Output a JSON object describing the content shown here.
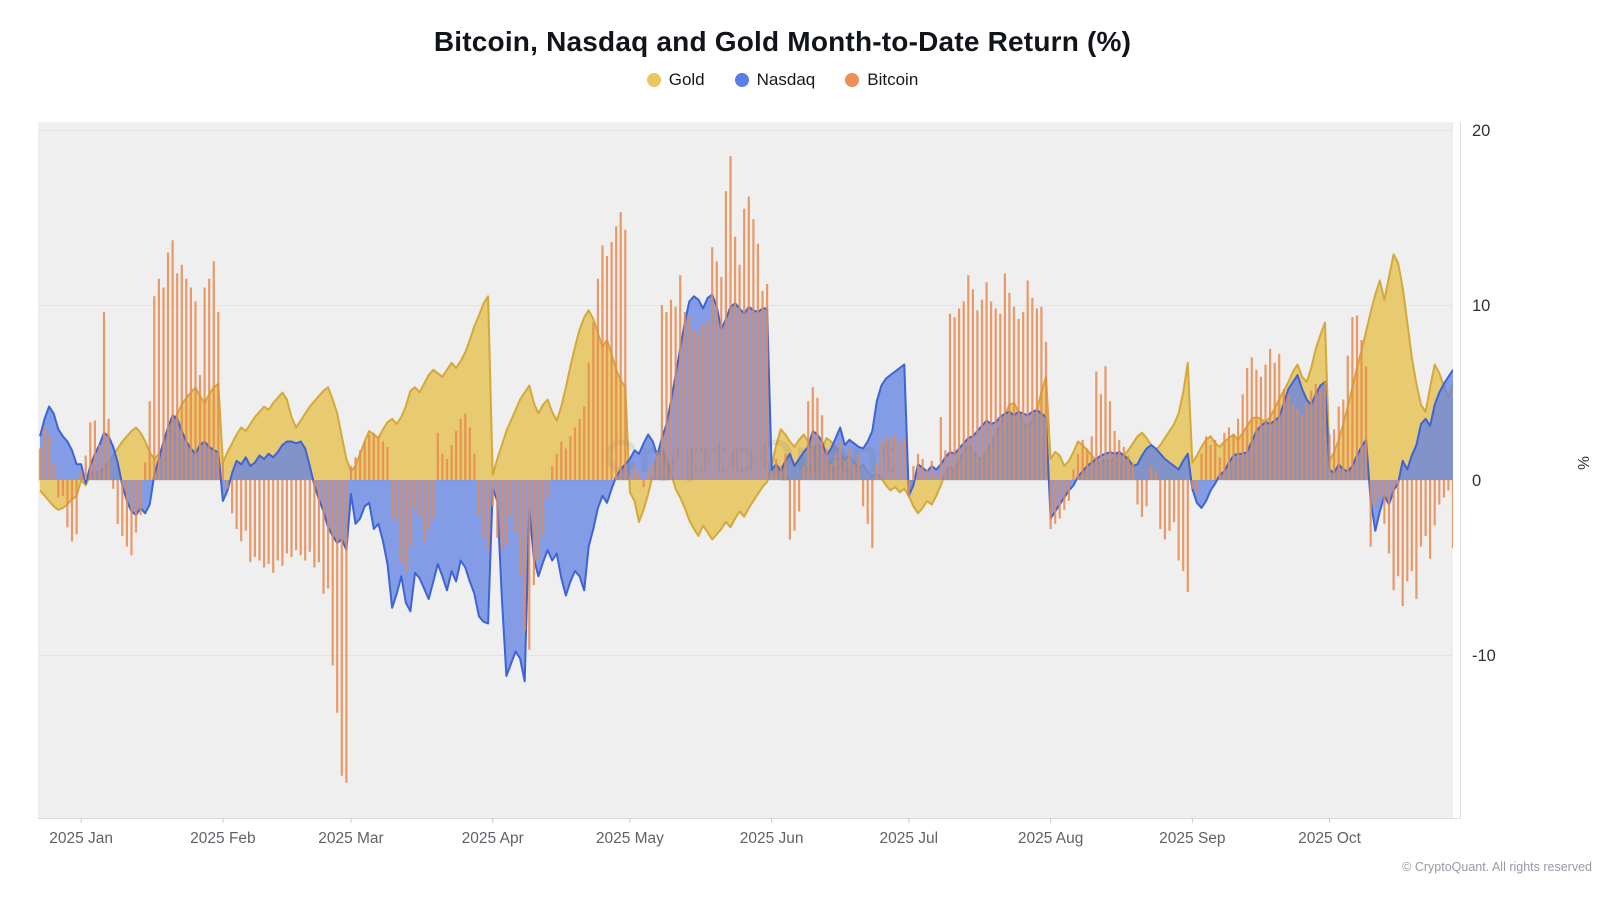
{
  "title": "Bitcoin, Nasdaq and Gold Month-to-Date Return (%)",
  "legend": [
    {
      "label": "Gold",
      "color": "#e7c95f"
    },
    {
      "label": "Nasdaq",
      "color": "#5a7de6"
    },
    {
      "label": "Bitcoin",
      "color": "#ed8e55"
    }
  ],
  "watermark": "CryptoQuant",
  "footer": "© CryptoQuant. All rights reserved",
  "chart_data": {
    "type": "mixed",
    "title": "Bitcoin, Nasdaq and Gold Month-to-Date Return (%)",
    "ylabel": "%",
    "grid": true,
    "legend_position": "top-center",
    "start_date": "2024-12-23",
    "frequency": "daily",
    "note": "Month-to-date return in percent; values reset to ~0 at the start of each month.",
    "y_axis": {
      "ticks": [
        20,
        10,
        0,
        -10
      ],
      "unit": "%",
      "range": [
        -19.3,
        20.5
      ]
    },
    "x_axis": {
      "month_labels": [
        {
          "label": "2025 Jan",
          "day_index": 9
        },
        {
          "label": "2025 Feb",
          "day_index": 40
        },
        {
          "label": "2025 Mar",
          "day_index": 68
        },
        {
          "label": "2025 Apr",
          "day_index": 99
        },
        {
          "label": "2025 May",
          "day_index": 129
        },
        {
          "label": "2025 Jun",
          "day_index": 160
        },
        {
          "label": "2025 Jul",
          "day_index": 190
        },
        {
          "label": "2025 Aug",
          "day_index": 221
        },
        {
          "label": "2025 Sep",
          "day_index": 252
        },
        {
          "label": "2025 Oct",
          "day_index": 282
        }
      ]
    },
    "series": [
      {
        "name": "Gold",
        "type": "area",
        "fill": "#e7c55f",
        "fill_opacity": 0.88,
        "stroke": "#d3a93a",
        "values": [
          -0.6,
          -0.9,
          -1.2,
          -1.5,
          -1.7,
          -1.6,
          -1.4,
          -1.1,
          -0.9,
          0.0,
          -0.3,
          0.3,
          0.5,
          0.4,
          0.7,
          1.0,
          1.4,
          1.8,
          2.2,
          2.5,
          2.8,
          3.0,
          2.7,
          2.2,
          1.6,
          1.2,
          1.5,
          2.0,
          2.6,
          3.2,
          3.8,
          4.3,
          4.7,
          5.0,
          5.3,
          4.8,
          4.4,
          4.9,
          5.3,
          5.5,
          1.0,
          1.6,
          2.1,
          2.6,
          3.0,
          2.8,
          3.2,
          3.6,
          3.9,
          4.2,
          4.0,
          4.4,
          4.7,
          5.0,
          4.6,
          3.6,
          3.0,
          3.4,
          3.8,
          4.2,
          4.5,
          4.8,
          5.1,
          5.3,
          4.6,
          3.8,
          2.5,
          1.2,
          0.5,
          0.8,
          1.5,
          2.2,
          2.8,
          2.6,
          2.4,
          2.9,
          3.3,
          3.5,
          3.2,
          3.6,
          4.2,
          5.1,
          5.3,
          5.0,
          5.5,
          6.0,
          6.3,
          6.1,
          5.9,
          6.3,
          6.7,
          6.4,
          6.8,
          7.3,
          8.0,
          8.8,
          9.4,
          10.1,
          10.5,
          0.3,
          1.2,
          2.0,
          2.8,
          3.4,
          4.0,
          4.6,
          5.0,
          5.4,
          4.4,
          3.8,
          4.3,
          4.6,
          3.9,
          3.4,
          4.2,
          5.3,
          6.5,
          7.6,
          8.6,
          9.3,
          9.7,
          9.2,
          8.4,
          7.6,
          8.0,
          7.2,
          6.3,
          5.7,
          5.3,
          -0.7,
          -1.2,
          -2.4,
          -1.7,
          -0.8,
          0.3,
          1.5,
          1.7,
          1.2,
          0.4,
          -0.5,
          -1.0,
          -1.6,
          -2.3,
          -2.8,
          -3.2,
          -2.6,
          -3.0,
          -3.4,
          -3.1,
          -2.8,
          -2.4,
          -2.7,
          -2.2,
          -1.8,
          -2.1,
          -1.6,
          -1.2,
          -0.8,
          -0.4,
          -0.1,
          0.8,
          2.0,
          2.9,
          2.6,
          2.2,
          1.9,
          2.3,
          2.6,
          2.2,
          1.7,
          2.1,
          1.8,
          2.4,
          2.2,
          1.9,
          1.5,
          1.2,
          1.4,
          1.0,
          0.7,
          0.9,
          0.5,
          0.2,
          0.4,
          0.1,
          -0.3,
          -0.6,
          -0.4,
          -0.7,
          -0.5,
          -0.9,
          -1.5,
          -1.9,
          -1.6,
          -1.2,
          -1.4,
          -0.9,
          -0.3,
          0.4,
          0.8,
          0.5,
          1.1,
          1.6,
          2.0,
          1.7,
          1.3,
          1.2,
          1.6,
          2.1,
          2.6,
          3.1,
          3.7,
          4.3,
          4.4,
          3.9,
          3.3,
          2.9,
          3.4,
          4.0,
          5.0,
          5.9,
          1.2,
          1.6,
          1.4,
          0.8,
          1.1,
          1.6,
          2.2,
          2.0,
          1.7,
          1.4,
          1.1,
          0.9,
          1.2,
          1.0,
          1.3,
          1.6,
          1.4,
          1.7,
          2.1,
          2.5,
          2.7,
          2.4,
          2.0,
          1.7,
          2.0,
          2.4,
          2.8,
          3.2,
          3.8,
          5.0,
          6.7,
          1.0,
          1.4,
          1.9,
          2.3,
          2.5,
          2.1,
          1.9,
          2.2,
          2.4,
          2.6,
          2.3,
          2.7,
          3.1,
          3.5,
          3.6,
          3.5,
          3.3,
          3.6,
          4.1,
          4.6,
          5.1,
          5.6,
          6.2,
          6.6,
          5.9,
          5.6,
          6.4,
          7.5,
          8.3,
          9.0,
          1.1,
          1.6,
          2.3,
          3.2,
          4.2,
          5.3,
          6.4,
          7.4,
          8.5,
          9.6,
          10.6,
          11.4,
          10.3,
          11.6,
          12.9,
          12.4,
          11.0,
          9.0,
          7.0,
          5.5,
          4.3,
          3.9,
          5.3,
          6.6,
          6.1,
          5.4,
          4.7,
          5.5
        ]
      },
      {
        "name": "Nasdaq",
        "type": "area",
        "fill": "#6484e2",
        "fill_opacity": 0.78,
        "stroke": "#3e63d5",
        "values": [
          2.5,
          3.5,
          4.2,
          3.8,
          2.9,
          2.5,
          2.2,
          1.7,
          0.9,
          0.9,
          -0.2,
          0.8,
          1.5,
          2.0,
          2.7,
          2.5,
          1.9,
          1.0,
          -0.3,
          -1.2,
          -1.8,
          -2.0,
          -1.6,
          -1.9,
          -1.4,
          0.3,
          1.2,
          2.2,
          3.0,
          3.7,
          3.5,
          2.8,
          2.2,
          1.8,
          1.5,
          2.0,
          2.2,
          1.9,
          1.7,
          1.6,
          -1.2,
          -0.6,
          0.4,
          1.1,
          0.9,
          1.3,
          0.8,
          1.0,
          1.4,
          1.2,
          1.5,
          1.3,
          1.6,
          2.0,
          2.2,
          2.2,
          2.1,
          2.2,
          1.8,
          0.8,
          -0.3,
          -1.1,
          -1.8,
          -2.7,
          -3.2,
          -3.6,
          -3.4,
          -4.0,
          -0.8,
          -2.5,
          -2.2,
          -1.5,
          -1.3,
          -2.8,
          -2.5,
          -3.5,
          -4.8,
          -7.3,
          -6.5,
          -5.5,
          -7.0,
          -7.5,
          -5.3,
          -5.6,
          -6.2,
          -6.8,
          -5.8,
          -4.8,
          -5.5,
          -6.3,
          -5.2,
          -5.8,
          -4.6,
          -5.0,
          -5.8,
          -6.5,
          -7.8,
          -8.1,
          -8.2,
          -0.5,
          -1.2,
          -6.8,
          -11.2,
          -10.5,
          -9.8,
          -10.2,
          -11.5,
          -1.7,
          -4.5,
          -5.5,
          -4.7,
          -4.0,
          -4.6,
          -4.2,
          -5.6,
          -6.6,
          -5.8,
          -5.2,
          -5.5,
          -6.3,
          -3.8,
          -2.8,
          -1.6,
          -0.9,
          -1.3,
          -0.5,
          0.2,
          0.6,
          0.9,
          1.2,
          1.7,
          1.5,
          2.1,
          2.6,
          2.2,
          1.4,
          2.4,
          3.2,
          4.5,
          6.0,
          7.5,
          9.0,
          10.2,
          10.5,
          10.3,
          9.8,
          10.4,
          10.6,
          9.9,
          8.6,
          9.2,
          9.9,
          10.1,
          9.8,
          9.5,
          9.9,
          9.7,
          9.6,
          9.8,
          9.8,
          0.6,
          0.9,
          0.5,
          1.1,
          1.5,
          0.8,
          1.2,
          1.6,
          1.9,
          2.8,
          2.6,
          2.2,
          1.4,
          1.8,
          2.4,
          3.0,
          2.0,
          2.3,
          2.1,
          1.9,
          1.8,
          2.2,
          2.8,
          4.5,
          5.4,
          5.8,
          6.0,
          6.2,
          6.4,
          6.6,
          -0.9,
          -0.3,
          0.9,
          0.7,
          0.5,
          0.8,
          0.6,
          0.9,
          1.3,
          1.6,
          1.5,
          1.8,
          2.1,
          2.4,
          2.5,
          2.8,
          3.1,
          3.4,
          3.2,
          3.3,
          3.6,
          3.8,
          3.9,
          3.7,
          3.9,
          3.8,
          3.7,
          3.9,
          4.0,
          3.8,
          3.6,
          -2.2,
          -1.8,
          -1.4,
          -1.0,
          -0.6,
          -0.3,
          0.2,
          0.5,
          0.8,
          1.0,
          1.2,
          1.4,
          1.5,
          1.6,
          1.5,
          1.6,
          1.4,
          1.2,
          0.8,
          0.9,
          1.4,
          1.8,
          2.0,
          1.8,
          1.5,
          1.2,
          1.0,
          0.8,
          0.6,
          1.1,
          1.5,
          -0.5,
          -1.3,
          -1.6,
          -1.2,
          -0.6,
          -0.2,
          0.3,
          0.5,
          1.0,
          1.4,
          1.5,
          1.5,
          1.6,
          2.2,
          2.8,
          3.1,
          3.3,
          3.2,
          3.4,
          3.6,
          4.4,
          5.2,
          5.6,
          6.0,
          5.2,
          4.6,
          4.3,
          4.9,
          5.4,
          5.6,
          0.6,
          0.4,
          0.9,
          0.6,
          0.5,
          0.8,
          1.4,
          1.9,
          2.3,
          -1.2,
          -2.9,
          -1.8,
          -0.9,
          -1.4,
          -0.6,
          -0.2,
          1.1,
          0.6,
          1.4,
          2.0,
          3.2,
          3.5,
          3.1,
          4.3,
          5.0,
          5.5,
          5.9,
          6.3
        ]
      },
      {
        "name": "Bitcoin",
        "type": "bar",
        "color": "#e8894e",
        "bar_opacity": 0.85,
        "values": [
          1.8,
          3.0,
          2.6,
          0.9,
          -1.0,
          -0.9,
          -2.7,
          -3.5,
          -3.1,
          0.5,
          1.4,
          3.3,
          3.4,
          2.0,
          9.6,
          3.5,
          -0.5,
          -2.5,
          -3.2,
          -3.8,
          -4.3,
          -3.0,
          -2.0,
          1.0,
          4.5,
          10.5,
          11.5,
          11.0,
          13.0,
          13.7,
          11.8,
          12.3,
          11.5,
          11.0,
          10.2,
          6.0,
          11.0,
          11.5,
          12.5,
          9.6,
          1.0,
          -0.5,
          -1.9,
          -2.8,
          -3.5,
          -2.9,
          -4.7,
          -4.4,
          -4.6,
          -5.0,
          -4.8,
          -5.3,
          -4.6,
          -4.9,
          -4.2,
          -4.4,
          -4.0,
          -4.3,
          -4.6,
          -4.1,
          -5.0,
          -4.7,
          -6.5,
          -6.2,
          -10.6,
          -13.3,
          -16.9,
          -17.3,
          0.8,
          1.3,
          1.7,
          2.2,
          2.6,
          2.7,
          2.5,
          2.2,
          1.9,
          -2.2,
          -2.3,
          -4.7,
          -5.2,
          -3.8,
          -1.7,
          -2.1,
          -3.5,
          -2.8,
          -2.2,
          2.7,
          1.5,
          1.2,
          2.0,
          2.8,
          3.5,
          3.8,
          3.0,
          1.5,
          -2.0,
          -3.3,
          -4.0,
          -1.5,
          -3.3,
          -4.0,
          -3.6,
          -2.0,
          -3.0,
          -5.5,
          -8.6,
          -9.7,
          -6.0,
          -4.5,
          -3.2,
          -1.0,
          0.8,
          1.5,
          2.2,
          1.8,
          2.5,
          3.0,
          3.5,
          4.2,
          6.7,
          9.0,
          11.5,
          13.4,
          12.8,
          13.6,
          14.5,
          15.3,
          14.3,
          0.3,
          0.8,
          0.5,
          -0.4,
          0.6,
          1.0,
          1.6,
          10.0,
          9.6,
          10.3,
          9.9,
          11.7,
          9.6,
          9.3,
          8.6,
          8.4,
          8.9,
          9.1,
          13.3,
          12.5,
          11.6,
          16.5,
          18.5,
          13.9,
          12.3,
          15.5,
          16.2,
          14.9,
          13.5,
          10.8,
          11.2,
          0.5,
          1.2,
          0.8,
          1.5,
          -3.4,
          -2.9,
          -1.8,
          0.8,
          4.5,
          5.3,
          4.7,
          3.7,
          1.8,
          0.9,
          1.4,
          2.2,
          1.1,
          1.7,
          0.9,
          1.5,
          -1.5,
          -2.5,
          -3.9,
          1.0,
          2.2,
          2.5,
          2.3,
          2.6,
          2.2,
          2.4,
          -1.0,
          0.8,
          1.5,
          1.2,
          0.6,
          1.1,
          0.4,
          3.6,
          1.7,
          9.5,
          9.3,
          9.8,
          10.2,
          11.7,
          10.9,
          9.7,
          10.3,
          11.3,
          10.2,
          9.8,
          9.5,
          11.8,
          10.7,
          9.9,
          9.2,
          9.6,
          11.4,
          10.4,
          9.8,
          9.9,
          7.9,
          -2.8,
          -2.5,
          -2.2,
          -1.7,
          -1.2,
          0.6,
          1.5,
          2.3,
          1.8,
          2.5,
          6.2,
          4.9,
          6.5,
          4.5,
          2.8,
          2.3,
          1.9,
          1.4,
          1.0,
          -1.4,
          -2.1,
          -1.5,
          0.8,
          0.5,
          -2.8,
          -3.4,
          -2.9,
          -2.4,
          -4.6,
          -5.2,
          -6.4,
          -0.5,
          -0.8,
          1.5,
          2.5,
          2.0,
          2.3,
          1.3,
          2.7,
          3.0,
          2.6,
          3.5,
          4.9,
          6.4,
          7.0,
          6.3,
          5.9,
          6.6,
          7.5,
          6.7,
          7.2,
          5.2,
          4.9,
          4.3,
          4.0,
          3.7,
          4.4,
          5.1,
          5.5,
          5.2,
          5.6,
          2.6,
          2.9,
          4.2,
          4.6,
          7.1,
          9.3,
          9.4,
          8.0,
          6.5,
          -3.8,
          -1.5,
          -1.0,
          -2.5,
          -4.2,
          -6.3,
          -5.5,
          -7.2,
          -5.8,
          -5.2,
          -6.8,
          -3.8,
          -3.2,
          -4.5,
          -2.6,
          -1.4,
          -1.0,
          -0.6,
          -3.9
        ]
      }
    ]
  }
}
